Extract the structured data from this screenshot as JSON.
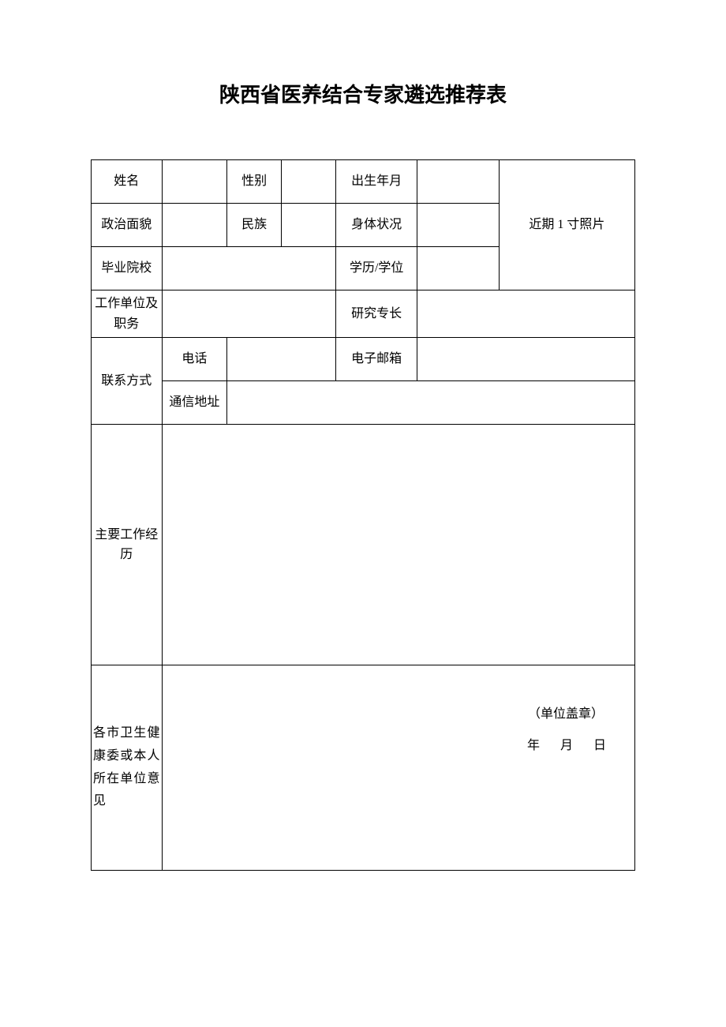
{
  "title": "陕西省医养结合专家遴选推荐表",
  "labels": {
    "name": "姓名",
    "gender": "性别",
    "birth": "出生年月",
    "politics": "政治面貌",
    "ethnicity": "民族",
    "health": "身体状况",
    "school": "毕业院校",
    "education": "学历/学位",
    "workUnit": "工作单位及职务",
    "specialty": "研究专长",
    "contact": "联系方式",
    "phone": "电话",
    "email": "电子邮箱",
    "address": "通信地址",
    "workHistory": "主要工作经历",
    "opinion": "各市卫生健康委或本人所在单位意见",
    "photo": "近期 1 寸照片",
    "stamp": "（单位盖章）",
    "dateYear": "年",
    "dateMonth": "月",
    "dateDay": "日"
  },
  "values": {
    "name": "",
    "gender": "",
    "birth": "",
    "politics": "",
    "ethnicity": "",
    "health": "",
    "school": "",
    "education": "",
    "workUnit": "",
    "specialty": "",
    "phone": "",
    "email": "",
    "address": "",
    "workHistory": "",
    "opinion": ""
  },
  "colors": {
    "border": "#000000",
    "background": "#ffffff",
    "text": "#000000"
  },
  "fonts": {
    "titleSize": 26,
    "bodySize": 16
  }
}
